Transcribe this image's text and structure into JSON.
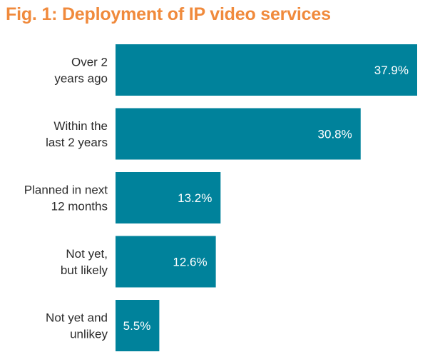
{
  "chart_data": {
    "type": "bar",
    "orientation": "horizontal",
    "title": "Fig. 1: Deployment of IP video services",
    "categories": [
      [
        "Over 2",
        "years ago"
      ],
      [
        "Within the",
        "last 2 years"
      ],
      [
        "Planned in next",
        "12 months"
      ],
      [
        "Not yet,",
        "but likely"
      ],
      [
        "Not yet and",
        "unlikey"
      ]
    ],
    "values": [
      37.9,
      30.8,
      13.2,
      12.6,
      5.5
    ],
    "value_labels": [
      "37.9%",
      "30.8%",
      "13.2%",
      "12.6%",
      "5.5%"
    ],
    "xlim": [
      0,
      37.9
    ],
    "xlabel": "",
    "ylabel": "",
    "grid": false,
    "legend": "none",
    "bar_color": "#00829b",
    "title_color": "#f08a3c"
  }
}
